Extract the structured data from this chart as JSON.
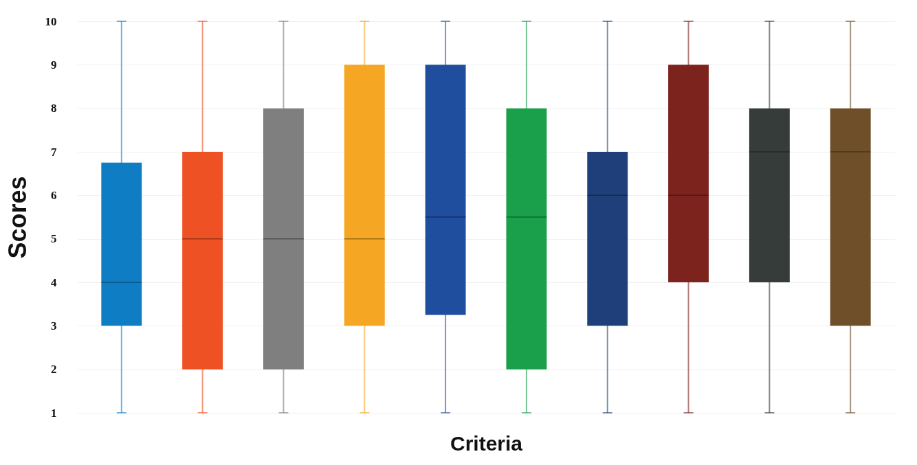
{
  "chart_data": {
    "type": "box",
    "xlabel": "Criteria",
    "ylabel": "Scores",
    "categories": [
      null,
      null,
      null,
      null,
      null,
      null,
      null,
      null,
      null,
      null
    ],
    "boxes": [
      {
        "low": 1,
        "q1": 3,
        "median": 4,
        "q3": 6.75,
        "high": 10
      },
      {
        "low": 1,
        "q1": 2,
        "median": 5,
        "q3": 7,
        "high": 10
      },
      {
        "low": 1,
        "q1": 2,
        "median": 5,
        "q3": 8,
        "high": 10
      },
      {
        "low": 1,
        "q1": 3,
        "median": 5,
        "q3": 9,
        "high": 10
      },
      {
        "low": 1,
        "q1": 3.25,
        "median": 5.5,
        "q3": 9,
        "high": 10
      },
      {
        "low": 1,
        "q1": 2,
        "median": 5.5,
        "q3": 8,
        "high": 10
      },
      {
        "low": 1,
        "q1": 3,
        "median": 6,
        "q3": 7,
        "high": 10
      },
      {
        "low": 1,
        "q1": 4,
        "median": 6,
        "q3": 9,
        "high": 10
      },
      {
        "low": 1,
        "q1": 4,
        "median": 7,
        "q3": 8,
        "high": 10
      },
      {
        "low": 1,
        "q1": 3,
        "median": 7,
        "q3": 8,
        "high": 10
      }
    ],
    "colors": [
      "#0f7dc4",
      "#ee5124",
      "#7f7f7f",
      "#f5a623",
      "#1f4e9f",
      "#1a9f4b",
      "#1f3f7a",
      "#7d231e",
      "#363c3a",
      "#6f4f2a"
    ],
    "ylim": [
      1,
      10
    ],
    "yticks": [
      1,
      2,
      3,
      4,
      5,
      6,
      7,
      8,
      9,
      10
    ],
    "grid": "y",
    "tick_labels": "y"
  }
}
